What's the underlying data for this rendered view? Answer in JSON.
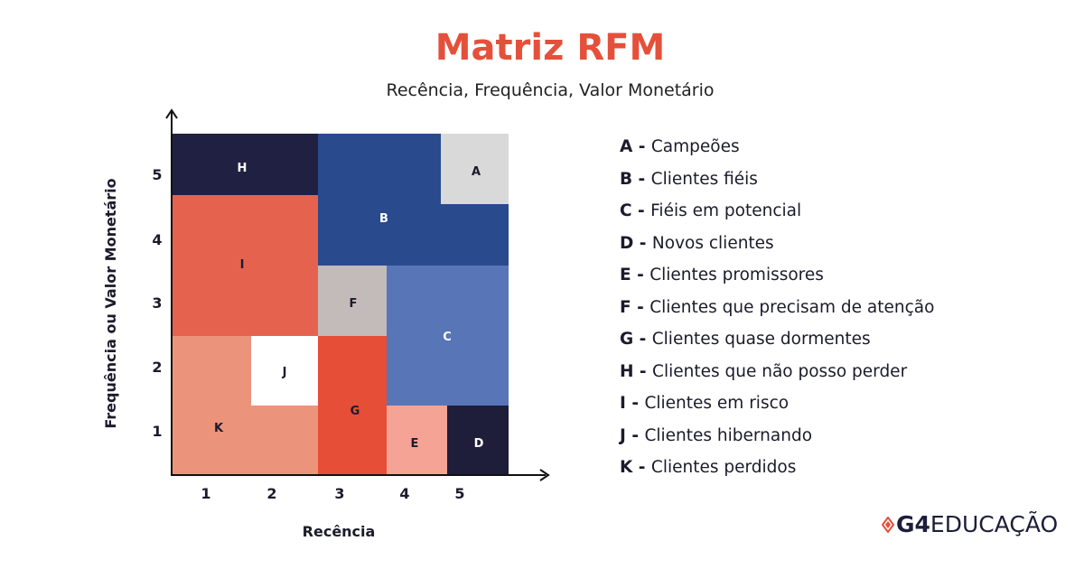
{
  "title": "Matriz RFM",
  "subtitle": "Recência, Frequência, Valor Monetário",
  "axes": {
    "x_label": "Recência",
    "y_label": "Frequência ou Valor Monetário",
    "x_ticks": [
      "1",
      "2",
      "3",
      "4",
      "5"
    ],
    "y_ticks": [
      "5",
      "4",
      "3",
      "2",
      "1"
    ]
  },
  "segments": [
    {
      "id": "H",
      "name": "Clientes que não posso perder",
      "color": "#202142"
    },
    {
      "id": "B",
      "name": "Clientes fiéis",
      "color": "#2a4a8e"
    },
    {
      "id": "A",
      "name": "Campeões",
      "color": "#d9d9d9"
    },
    {
      "id": "I",
      "name": "Clientes em risco",
      "color": "#e5634e"
    },
    {
      "id": "F",
      "name": "Clientes que precisam  de atenção",
      "color": "#c3baba"
    },
    {
      "id": "C",
      "name": "Fiéis em potencial",
      "color": "#5875b8"
    },
    {
      "id": "K",
      "name": "Clientes perdidos",
      "color": "#ec937c"
    },
    {
      "id": "J",
      "name": "Clientes hibernando",
      "color": "#ffffff"
    },
    {
      "id": "G",
      "name": "Clientes quase dormentes",
      "color": "#e64e38"
    },
    {
      "id": "E",
      "name": "Clientes promissores",
      "color": "#f4a394"
    },
    {
      "id": "D",
      "name": "Novos clientes",
      "color": "#1e1e3a"
    }
  ],
  "legend": [
    {
      "key": "A -",
      "text": "Campeões"
    },
    {
      "key": "B -",
      "text": "Clientes fiéis"
    },
    {
      "key": "C -",
      "text": "Fiéis em potencial"
    },
    {
      "key": "D -",
      "text": "Novos clientes"
    },
    {
      "key": "E -",
      "text": "Clientes promissores"
    },
    {
      "key": "F -",
      "text": "Clientes que precisam  de atenção"
    },
    {
      "key": "G -",
      "text": "Clientes quase dormentes"
    },
    {
      "key": "H -",
      "text": "Clientes que não posso perder"
    },
    {
      "key": "I -",
      "text": "Clientes em risco"
    },
    {
      "key": "J -",
      "text": "Clientes hibernando"
    },
    {
      "key": "K -",
      "text": "Clientes perdidos"
    }
  ],
  "brand": {
    "mark": "G4",
    "text": "EDUCAÇÃO"
  }
}
